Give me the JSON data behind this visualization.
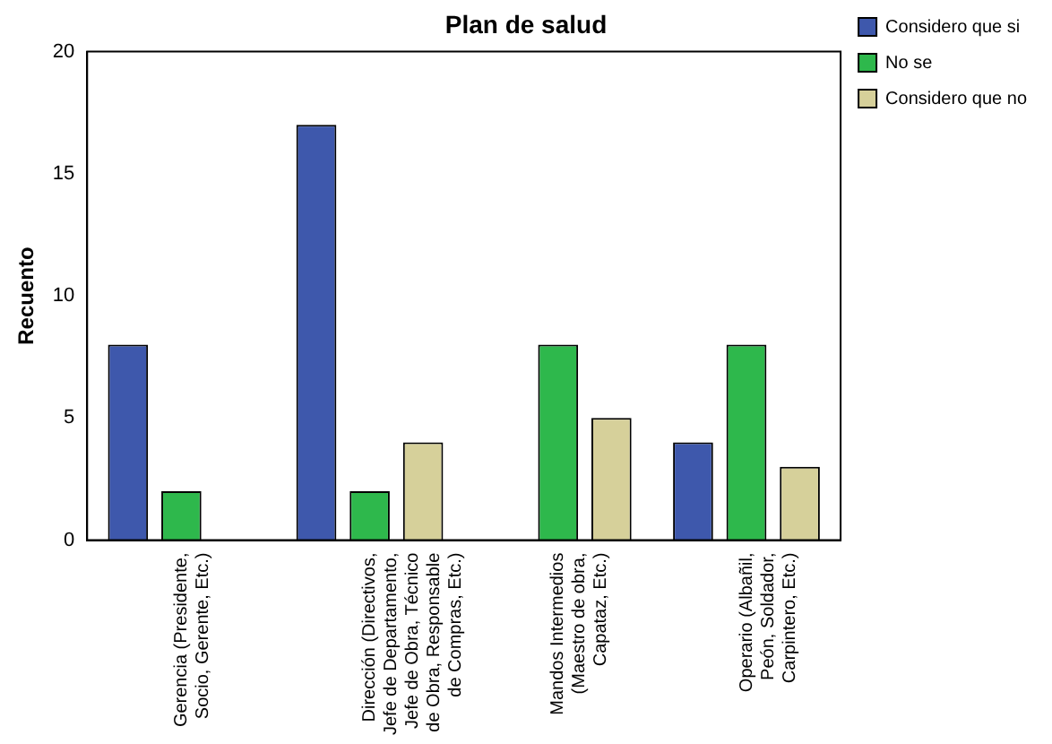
{
  "chart_data": {
    "type": "bar",
    "title": "Plan de salud",
    "ylabel": "Recuento",
    "categories": [
      "Gerencia (Presidente, Socio, Gerente, Etc.)",
      "Dirección (Directivos, Jefe de Departamento, Jefe de Obra, Técnico de Obra, Responsable de Compras, Etc.)",
      "Mandos Intermedios (Maestro de obra, Capataz, Etc.)",
      "Operario (Albañil, Peón, Soldador, Carpintero, Etc.)"
    ],
    "series": [
      {
        "name": "Considero que si",
        "color": "#3e58ac",
        "values": [
          8,
          17,
          null,
          4
        ]
      },
      {
        "name": "No se",
        "color": "#2eb84c",
        "values": [
          2,
          2,
          8,
          8
        ]
      },
      {
        "name": "Considero que no",
        "color": "#d6d09a",
        "values": [
          null,
          4,
          5,
          3
        ]
      }
    ],
    "ylim": [
      0,
      20
    ],
    "yticks": [
      0,
      5,
      10,
      15,
      20
    ],
    "grid": false,
    "legend": "top right"
  }
}
